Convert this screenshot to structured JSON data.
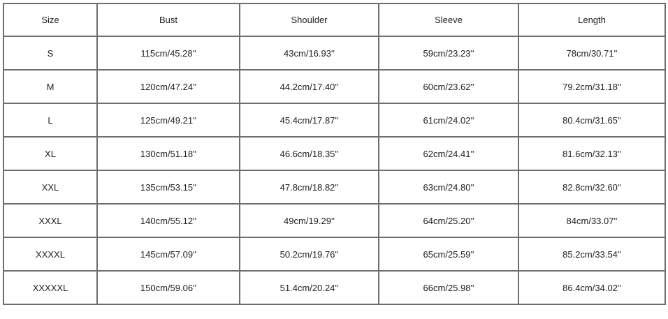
{
  "table": {
    "headers": [
      "Size",
      "Bust",
      "Shoulder",
      "Sleeve",
      "Length"
    ],
    "rows": [
      [
        "S",
        "115cm/45.28''",
        "43cm/16.93''",
        "59cm/23.23''",
        "78cm/30.71''"
      ],
      [
        "M",
        "120cm/47.24''",
        "44.2cm/17.40''",
        "60cm/23.62''",
        "79.2cm/31.18''"
      ],
      [
        "L",
        "125cm/49.21''",
        "45.4cm/17.87''",
        "61cm/24.02''",
        "80.4cm/31.65''"
      ],
      [
        "XL",
        "130cm/51.18''",
        "46.6cm/18.35''",
        "62cm/24.41''",
        "81.6cm/32.13''"
      ],
      [
        "XXL",
        "135cm/53.15''",
        "47.8cm/18.82''",
        "63cm/24.80''",
        "82.8cm/32.60''"
      ],
      [
        "XXXL",
        "140cm/55.12''",
        "49cm/19.29''",
        "64cm/25.20''",
        "84cm/33.07''"
      ],
      [
        "XXXXL",
        "145cm/57.09''",
        "50.2cm/19.76''",
        "65cm/25.59''",
        "85.2cm/33.54''"
      ],
      [
        "XXXXXL",
        "150cm/59.06''",
        "51.4cm/20.24''",
        "66cm/25.98''",
        "86.4cm/34.02''"
      ]
    ]
  }
}
